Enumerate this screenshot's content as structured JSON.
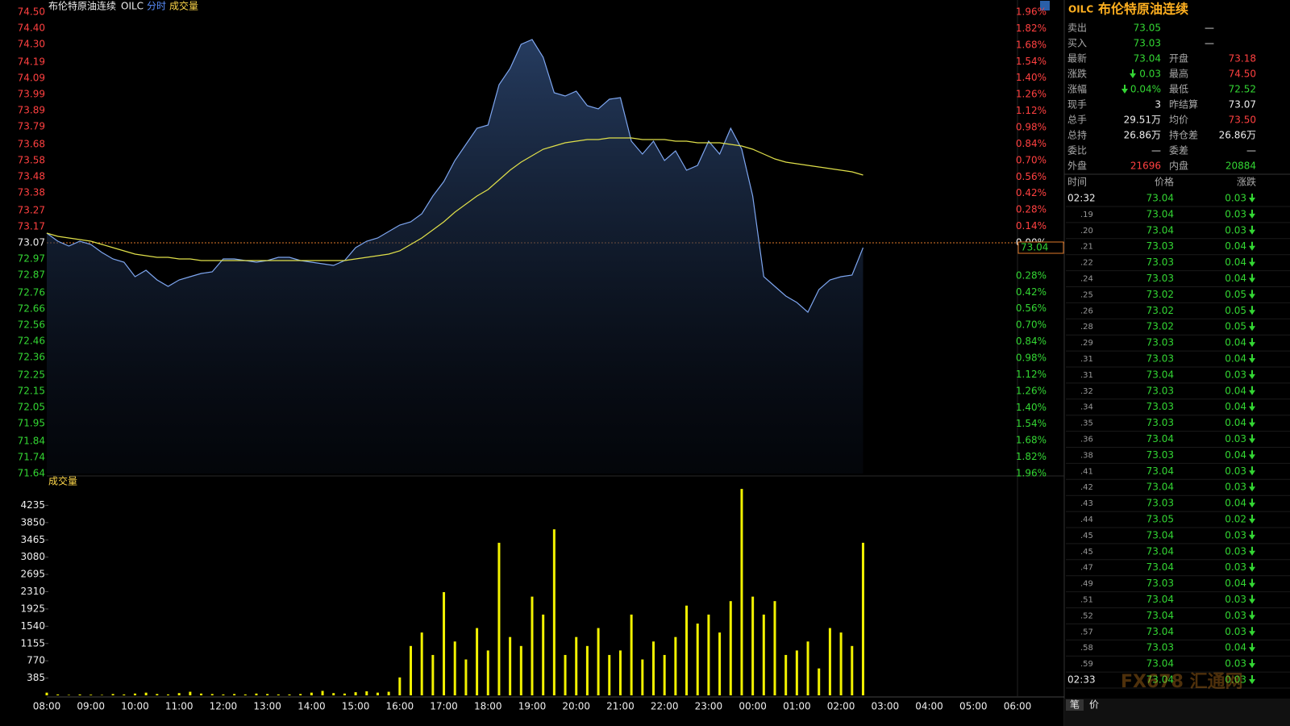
{
  "header": {
    "name": "布伦特原油连续",
    "code": "OILC",
    "mode": "分时",
    "indicator": "成交量"
  },
  "chart_data": [
    {
      "type": "line",
      "ylim": [
        71.64,
        74.5
      ],
      "yticks": [
        {
          "value": 74.5,
          "label": "74.50"
        },
        {
          "value": 74.4,
          "label": "74.40"
        },
        {
          "value": 74.3,
          "label": "74.30"
        },
        {
          "value": 74.19,
          "label": "74.19"
        },
        {
          "value": 74.09,
          "label": "74.09"
        },
        {
          "value": 73.99,
          "label": "73.99"
        },
        {
          "value": 73.89,
          "label": "73.89"
        },
        {
          "value": 73.79,
          "label": "73.79"
        },
        {
          "value": 73.68,
          "label": "73.68"
        },
        {
          "value": 73.58,
          "label": "73.58"
        },
        {
          "value": 73.48,
          "label": "73.48"
        },
        {
          "value": 73.38,
          "label": "73.38"
        },
        {
          "value": 73.27,
          "label": "73.27"
        },
        {
          "value": 73.17,
          "label": "73.17"
        },
        {
          "value": 73.07,
          "label": "73.07"
        },
        {
          "value": 72.97,
          "label": "72.97"
        },
        {
          "value": 72.87,
          "label": "72.87"
        },
        {
          "value": 72.76,
          "label": "72.76"
        },
        {
          "value": 72.66,
          "label": "72.66"
        },
        {
          "value": 72.56,
          "label": "72.56"
        },
        {
          "value": 72.46,
          "label": "72.46"
        },
        {
          "value": 72.36,
          "label": "72.36"
        },
        {
          "value": 72.25,
          "label": "72.25"
        },
        {
          "value": 72.15,
          "label": "72.15"
        },
        {
          "value": 72.05,
          "label": "72.05"
        },
        {
          "value": 71.95,
          "label": "71.95"
        },
        {
          "value": 71.84,
          "label": "71.84"
        },
        {
          "value": 71.74,
          "label": "71.74"
        },
        {
          "value": 71.64,
          "label": "71.64"
        }
      ],
      "y2lim": [
        -1.96,
        1.96
      ],
      "y2ticks": [
        {
          "value": 1.96,
          "label": "1.96%"
        },
        {
          "value": 1.82,
          "label": "1.82%"
        },
        {
          "value": 1.68,
          "label": "1.68%"
        },
        {
          "value": 1.54,
          "label": "1.54%"
        },
        {
          "value": 1.4,
          "label": "1.40%"
        },
        {
          "value": 1.26,
          "label": "1.26%"
        },
        {
          "value": 1.12,
          "label": "1.12%"
        },
        {
          "value": 0.98,
          "label": "0.98%"
        },
        {
          "value": 0.84,
          "label": "0.84%"
        },
        {
          "value": 0.7,
          "label": "0.70%"
        },
        {
          "value": 0.56,
          "label": "0.56%"
        },
        {
          "value": 0.42,
          "label": "0.42%"
        },
        {
          "value": 0.28,
          "label": "0.28%"
        },
        {
          "value": 0.14,
          "label": "0.14%"
        },
        {
          "value": 0,
          "label": "0.00%"
        },
        {
          "value": -0.28,
          "label": "0.28%"
        },
        {
          "value": -0.42,
          "label": "0.42%"
        },
        {
          "value": -0.56,
          "label": "0.56%"
        },
        {
          "value": -0.7,
          "label": "0.70%"
        },
        {
          "value": -0.84,
          "label": "0.84%"
        },
        {
          "value": -0.98,
          "label": "0.98%"
        },
        {
          "value": -1.12,
          "label": "1.12%"
        },
        {
          "value": -1.26,
          "label": "1.26%"
        },
        {
          "value": -1.4,
          "label": "1.40%"
        },
        {
          "value": -1.54,
          "label": "1.54%"
        },
        {
          "value": -1.68,
          "label": "1.68%"
        },
        {
          "value": -1.82,
          "label": "1.82%"
        },
        {
          "value": -1.96,
          "label": "1.96%"
        }
      ],
      "baseline": 73.07,
      "last_price": {
        "value": 73.04,
        "label": "73.04"
      },
      "grid": false,
      "series": [
        {
          "color": "#7ea6f0",
          "values": [
            73.13,
            73.08,
            73.05,
            73.08,
            73.06,
            73.01,
            72.97,
            72.95,
            72.86,
            72.9,
            72.84,
            72.8,
            72.84,
            72.86,
            72.88,
            72.89,
            72.97,
            72.97,
            72.96,
            72.95,
            72.96,
            72.98,
            72.98,
            72.96,
            72.95,
            72.94,
            72.93,
            72.96,
            73.04,
            73.08,
            73.1,
            73.14,
            73.18,
            73.2,
            73.25,
            73.36,
            73.45,
            73.58,
            73.68,
            73.78,
            73.8,
            74.05,
            74.15,
            74.3,
            74.33,
            74.22,
            74.0,
            73.98,
            74.01,
            73.92,
            73.9,
            73.96,
            73.97,
            73.7,
            73.62,
            73.7,
            73.58,
            73.64,
            73.52,
            73.55,
            73.7,
            73.62,
            73.78,
            73.65,
            73.36,
            72.86,
            72.8,
            72.74,
            72.7,
            72.64,
            72.78,
            72.84,
            72.86,
            72.87,
            73.04,
            null,
            null,
            null,
            null,
            null,
            null,
            null,
            null,
            null,
            null,
            null,
            null,
            null,
            null
          ]
        },
        {
          "color": "#e0e04a",
          "values": [
            73.13,
            73.11,
            73.1,
            73.09,
            73.08,
            73.06,
            73.04,
            73.02,
            73.0,
            72.99,
            72.98,
            72.98,
            72.97,
            72.97,
            72.96,
            72.96,
            72.96,
            72.96,
            72.96,
            72.96,
            72.96,
            72.96,
            72.96,
            72.96,
            72.96,
            72.96,
            72.96,
            72.96,
            72.97,
            72.98,
            72.99,
            73.0,
            73.02,
            73.06,
            73.1,
            73.15,
            73.2,
            73.26,
            73.31,
            73.36,
            73.4,
            73.46,
            73.52,
            73.57,
            73.61,
            73.65,
            73.67,
            73.69,
            73.7,
            73.71,
            73.71,
            73.72,
            73.72,
            73.72,
            73.71,
            73.71,
            73.71,
            73.7,
            73.7,
            73.69,
            73.69,
            73.69,
            73.68,
            73.67,
            73.65,
            73.62,
            73.59,
            73.57,
            73.56,
            73.55,
            73.54,
            73.53,
            73.52,
            73.51,
            73.49,
            null,
            null,
            null,
            null,
            null,
            null,
            null,
            null,
            null,
            null,
            null,
            null,
            null,
            null
          ]
        }
      ]
    },
    {
      "type": "bar",
      "title": "成交量",
      "color": "#f2f200",
      "categories": [
        "08:00",
        null,
        null,
        null,
        "09:00",
        null,
        null,
        null,
        "10:00",
        null,
        null,
        null,
        "11:00",
        null,
        null,
        null,
        "12:00",
        null,
        null,
        null,
        "13:00",
        null,
        null,
        null,
        "14:00",
        null,
        null,
        null,
        "15:00",
        null,
        null,
        null,
        "16:00",
        null,
        null,
        null,
        "17:00",
        null,
        null,
        null,
        "18:00",
        null,
        null,
        null,
        "19:00",
        null,
        null,
        null,
        "20:00",
        null,
        null,
        null,
        "21:00",
        null,
        null,
        null,
        "22:00",
        null,
        null,
        null,
        "23:00",
        null,
        null,
        null,
        "00:00",
        null,
        null,
        null,
        "01:00",
        null,
        null,
        null,
        "02:00",
        null,
        null,
        null,
        "03:00",
        null,
        null,
        null,
        "04:00",
        null,
        null,
        null,
        "05:00",
        null,
        null,
        null,
        "06:00"
      ],
      "values": [
        60,
        20,
        10,
        20,
        15,
        10,
        30,
        20,
        40,
        60,
        30,
        20,
        50,
        80,
        40,
        30,
        20,
        30,
        20,
        40,
        30,
        20,
        20,
        30,
        60,
        100,
        50,
        40,
        70,
        90,
        60,
        80,
        400,
        1100,
        1400,
        900,
        2300,
        1200,
        800,
        1500,
        1000,
        3400,
        1300,
        1100,
        2200,
        1800,
        3700,
        900,
        1300,
        1100,
        1500,
        900,
        1000,
        1800,
        800,
        1200,
        900,
        1300,
        2000,
        1600,
        1800,
        1400,
        2100,
        4600,
        2200,
        1800,
        2100,
        900,
        1000,
        1200,
        600,
        1500,
        1400,
        1100,
        3400,
        null,
        null,
        null,
        null,
        null,
        null,
        null,
        null,
        null,
        null,
        null,
        null,
        null,
        null
      ],
      "ylim": [
        0,
        4620
      ],
      "yticks": [
        385,
        770,
        1155,
        1540,
        1925,
        2310,
        2695,
        3080,
        3465,
        3850,
        4235
      ]
    }
  ],
  "quote_panel": {
    "code": "OILC",
    "name": "布伦特原油连续",
    "rows": [
      {
        "left": {
          "label": "卖出",
          "value": "73.05",
          "color": "#33d633"
        },
        "right": {
          "value": "—",
          "color": "#ddd"
        }
      },
      {
        "left": {
          "label": "买入",
          "value": "73.03",
          "color": "#33d633"
        },
        "right": {
          "value": "—",
          "color": "#ddd"
        }
      },
      {
        "left": {
          "label": "最新",
          "value": "73.04",
          "color": "#33d633"
        },
        "right": {
          "label": "开盘",
          "value": "73.18",
          "color": "#ff4040"
        }
      },
      {
        "left": {
          "label": "涨跌",
          "value": "0.03",
          "color": "#33d633",
          "arrow": "down"
        },
        "right": {
          "label": "最高",
          "value": "74.50",
          "color": "#ff4040"
        }
      },
      {
        "left": {
          "label": "涨幅",
          "value": "0.04%",
          "color": "#33d633",
          "arrow": "down"
        },
        "right": {
          "label": "最低",
          "value": "72.52",
          "color": "#33d633"
        }
      },
      {
        "left": {
          "label": "现手",
          "value": "3",
          "color": "#eee"
        },
        "right": {
          "label": "昨结算",
          "value": "73.07",
          "color": "#eee"
        }
      },
      {
        "left": {
          "label": "总手",
          "value": "29.51万",
          "color": "#eee"
        },
        "right": {
          "label": "均价",
          "value": "73.50",
          "color": "#ff4040"
        }
      },
      {
        "left": {
          "label": "总持",
          "value": "26.86万",
          "color": "#eee"
        },
        "right": {
          "label": "持仓差",
          "value": "26.86万",
          "color": "#eee"
        }
      },
      {
        "left": {
          "label": "委比",
          "value": "—",
          "color": "#ddd"
        },
        "right": {
          "label": "委差",
          "value": "—",
          "color": "#ddd"
        }
      },
      {
        "left": {
          "label": "外盘",
          "value": "21696",
          "color": "#ff4040"
        },
        "right": {
          "label": "内盘",
          "value": "20884",
          "color": "#33d633"
        }
      }
    ],
    "ticks_header": [
      "时间",
      "价格",
      "涨跌"
    ],
    "ticks": [
      [
        "02:32",
        "73.04",
        "0.03"
      ],
      [
        ".19",
        "73.04",
        "0.03"
      ],
      [
        ".20",
        "73.04",
        "0.03"
      ],
      [
        ".21",
        "73.03",
        "0.04"
      ],
      [
        ".22",
        "73.03",
        "0.04"
      ],
      [
        ".24",
        "73.03",
        "0.04"
      ],
      [
        ".25",
        "73.02",
        "0.05"
      ],
      [
        ".26",
        "73.02",
        "0.05"
      ],
      [
        ".28",
        "73.02",
        "0.05"
      ],
      [
        ".29",
        "73.03",
        "0.04"
      ],
      [
        ".31",
        "73.03",
        "0.04"
      ],
      [
        ".31",
        "73.04",
        "0.03"
      ],
      [
        ".32",
        "73.03",
        "0.04"
      ],
      [
        ".34",
        "73.03",
        "0.04"
      ],
      [
        ".35",
        "73.03",
        "0.04"
      ],
      [
        ".36",
        "73.04",
        "0.03"
      ],
      [
        ".38",
        "73.03",
        "0.04"
      ],
      [
        ".41",
        "73.04",
        "0.03"
      ],
      [
        ".42",
        "73.04",
        "0.03"
      ],
      [
        ".43",
        "73.03",
        "0.04"
      ],
      [
        ".44",
        "73.05",
        "0.02"
      ],
      [
        ".45",
        "73.04",
        "0.03"
      ],
      [
        ".45",
        "73.04",
        "0.03"
      ],
      [
        ".47",
        "73.04",
        "0.03"
      ],
      [
        ".49",
        "73.03",
        "0.04"
      ],
      [
        ".51",
        "73.04",
        "0.03"
      ],
      [
        ".52",
        "73.04",
        "0.03"
      ],
      [
        ".57",
        "73.04",
        "0.03"
      ],
      [
        ".58",
        "73.03",
        "0.04"
      ],
      [
        ".59",
        "73.04",
        "0.03"
      ],
      [
        "02:33",
        "73.04",
        "0.03"
      ]
    ],
    "tabs": [
      "笔",
      "价"
    ],
    "watermark": "FX678 汇通网"
  }
}
